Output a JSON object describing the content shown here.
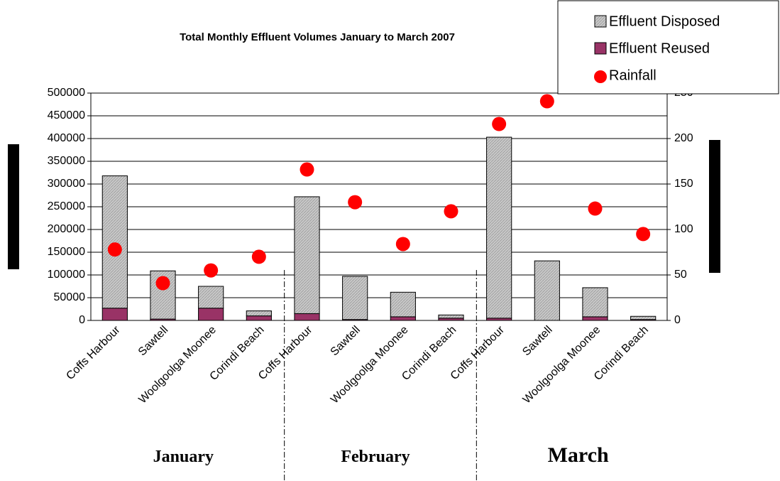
{
  "chart_data": {
    "type": "bar",
    "title": "Total Monthly Effluent Volumes January to March 2007",
    "categories": [
      "Coffs Harbour",
      "Sawtell",
      "Woolgoolga Moonee",
      "Corindi Beach",
      "Coffs Harbour",
      "Sawtell",
      "Woolgoolga Moonee",
      "Corindi Beach",
      "Coffs Harbour",
      "Sawtell",
      "Woolgoolga Moonee",
      "Corindi Beach"
    ],
    "groups": [
      "January",
      "February",
      "March"
    ],
    "stacked": true,
    "series": [
      {
        "name": "Effluent Reused",
        "color": "#993366",
        "values": [
          27000,
          3000,
          27000,
          10000,
          15000,
          2000,
          8000,
          5000,
          5000,
          0,
          8000,
          2000
        ]
      },
      {
        "name": "Effluent Disposed",
        "color": "#c0c0c0",
        "values": [
          291000,
          106000,
          48000,
          11000,
          257000,
          95000,
          54000,
          7000,
          398000,
          131000,
          64000,
          7000
        ]
      },
      {
        "name": "Rainfall",
        "color": "#ff0000",
        "axis": "y2",
        "type": "scatter",
        "values": [
          78,
          41,
          55,
          70,
          166,
          130,
          84,
          120,
          216,
          241,
          123,
          95
        ]
      }
    ],
    "legend_order": [
      1,
      0,
      2
    ],
    "ylim": [
      0,
      500000
    ],
    "yticks": [
      0,
      50000,
      100000,
      150000,
      200000,
      250000,
      300000,
      350000,
      400000,
      450000,
      500000
    ],
    "y2lim": [
      0,
      250
    ],
    "y2ticks": [
      0,
      50,
      100,
      150,
      200,
      250
    ],
    "grid": true
  }
}
